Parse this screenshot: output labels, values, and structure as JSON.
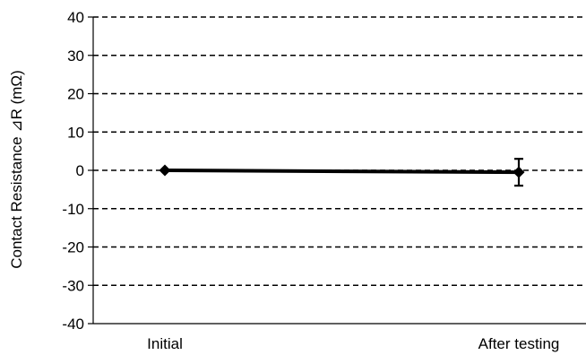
{
  "chart_data": {
    "type": "line",
    "ylabel": "Contact Resistance ⊿R (mΩ)",
    "xlabel": "",
    "categories": [
      "Initial",
      "After testing"
    ],
    "series": [
      {
        "values": [
          0,
          -0.5
        ],
        "error": [
          0,
          3.5
        ]
      }
    ],
    "ylim": [
      -40,
      40
    ],
    "yticks": [
      40,
      30,
      20,
      10,
      0,
      -10,
      -20,
      -30,
      -40
    ],
    "ytick_labels": [
      "40",
      "30",
      "20",
      "10",
      "0",
      "-10",
      "-20",
      "-30",
      "-40"
    ],
    "grid": "dashed-horizontal",
    "marker": "diamond",
    "colors": {
      "line": "#000000",
      "grid": "#000000"
    }
  }
}
